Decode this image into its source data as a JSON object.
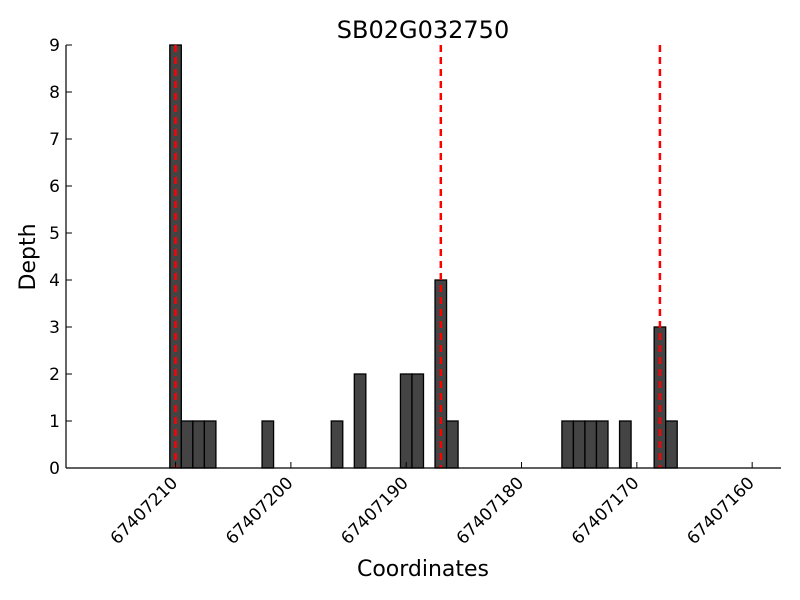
{
  "chart_data": {
    "type": "bar",
    "title": "SB02G032750",
    "xlabel": "Coordinates",
    "ylabel": "Depth",
    "x_axis_reversed": true,
    "xlim": [
      67407219.5,
      67407157.5
    ],
    "ylim": [
      0,
      9
    ],
    "xticks": [
      67407210,
      67407200,
      67407190,
      67407180,
      67407170,
      67407160
    ],
    "xtick_labels": [
      "67407210",
      "67407200",
      "67407190",
      "67407180",
      "67407170",
      "67407160"
    ],
    "yticks": [
      0,
      1,
      2,
      3,
      4,
      5,
      6,
      7,
      8,
      9
    ],
    "ytick_labels": [
      "0",
      "1",
      "2",
      "3",
      "4",
      "5",
      "6",
      "7",
      "8",
      "9"
    ],
    "bar_color": "#444444",
    "bars": [
      {
        "x": 67407210,
        "value": 9
      },
      {
        "x": 67407209,
        "value": 1
      },
      {
        "x": 67407208,
        "value": 1
      },
      {
        "x": 67407207,
        "value": 1
      },
      {
        "x": 67407202,
        "value": 1
      },
      {
        "x": 67407196,
        "value": 1
      },
      {
        "x": 67407194,
        "value": 2
      },
      {
        "x": 67407190,
        "value": 2
      },
      {
        "x": 67407189,
        "value": 2
      },
      {
        "x": 67407187,
        "value": 4
      },
      {
        "x": 67407186,
        "value": 1
      },
      {
        "x": 67407176,
        "value": 1
      },
      {
        "x": 67407175,
        "value": 1
      },
      {
        "x": 67407174,
        "value": 1
      },
      {
        "x": 67407173,
        "value": 1
      },
      {
        "x": 67407171,
        "value": 1
      },
      {
        "x": 67407168,
        "value": 3
      },
      {
        "x": 67407167,
        "value": 1
      }
    ],
    "markers": {
      "style": "dashed",
      "color": "#ff0000",
      "x": [
        67407210,
        67407187,
        67407168
      ]
    },
    "grid": false,
    "legend": "none"
  }
}
